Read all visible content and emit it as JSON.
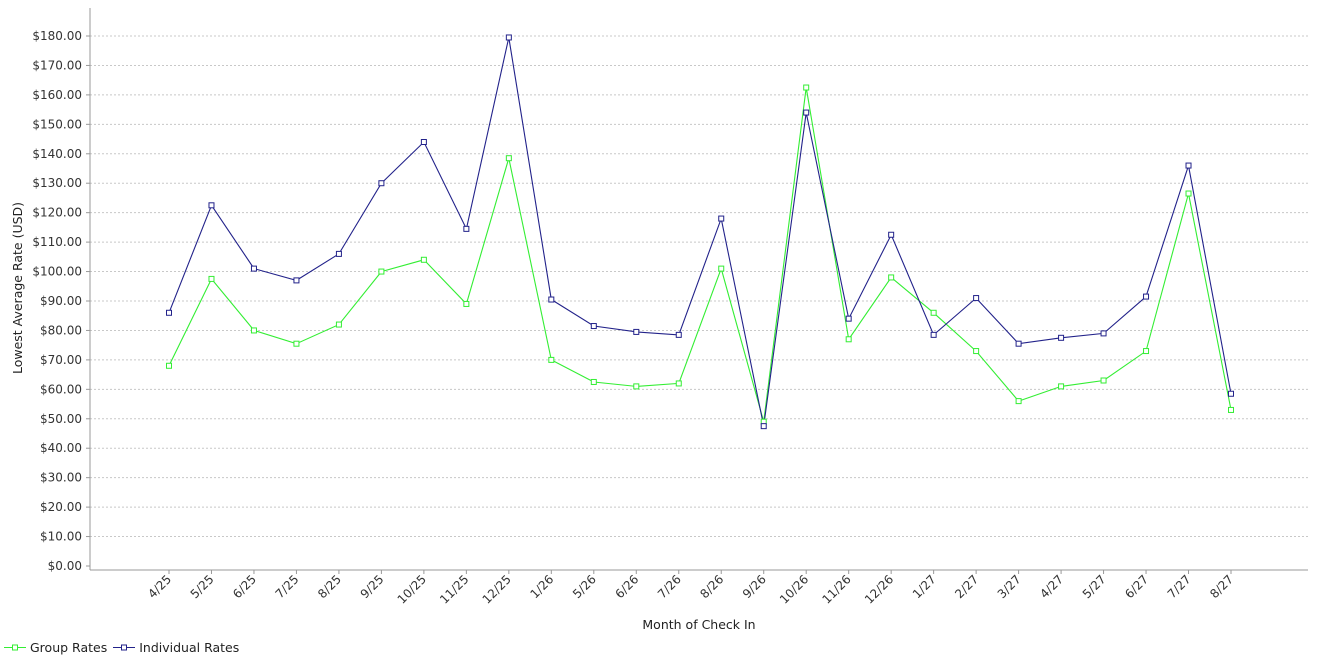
{
  "chart_data": {
    "type": "line",
    "title": "",
    "xlabel": "Month of Check In",
    "ylabel": "Lowest Average Rate (USD)",
    "ylim": [
      0,
      185
    ],
    "y_ticks": [
      "$0.00",
      "$10.00",
      "$20.00",
      "$30.00",
      "$40.00",
      "$50.00",
      "$60.00",
      "$70.00",
      "$80.00",
      "$90.00",
      "$100.00",
      "$110.00",
      "$120.00",
      "$130.00",
      "$140.00",
      "$150.00",
      "$160.00",
      "$170.00",
      "$180.00"
    ],
    "y_tick_values": [
      0,
      10,
      20,
      30,
      40,
      50,
      60,
      70,
      80,
      90,
      100,
      110,
      120,
      130,
      140,
      150,
      160,
      170,
      180
    ],
    "grid": true,
    "legend_position": "bottom-left",
    "categories": [
      "4/25",
      "5/25",
      "6/25",
      "7/25",
      "8/25",
      "9/25",
      "10/25",
      "11/25",
      "12/25",
      "1/26",
      "5/26",
      "6/26",
      "7/26",
      "8/26",
      "9/26",
      "10/26",
      "11/26",
      "12/26",
      "1/27",
      "2/27",
      "3/27",
      "4/27",
      "5/27",
      "6/27",
      "7/27",
      "8/27"
    ],
    "series": [
      {
        "name": "Group Rates",
        "color": "#33ee33",
        "values": [
          68,
          97.5,
          80,
          75.5,
          82,
          100,
          104,
          89,
          138.5,
          70,
          62.5,
          61,
          62,
          101,
          49,
          162.5,
          77,
          98,
          86,
          73,
          56,
          61,
          63,
          73,
          126.5,
          53
        ]
      },
      {
        "name": "Individual Rates",
        "color": "#22228a",
        "values": [
          86,
          122.5,
          101,
          97,
          106,
          130,
          144,
          114.5,
          179.5,
          90.5,
          81.5,
          79.5,
          78.5,
          118,
          47.5,
          154,
          84,
          112.5,
          78.5,
          91,
          75.5,
          77.5,
          79,
          91.5,
          136,
          58.5
        ]
      }
    ]
  }
}
